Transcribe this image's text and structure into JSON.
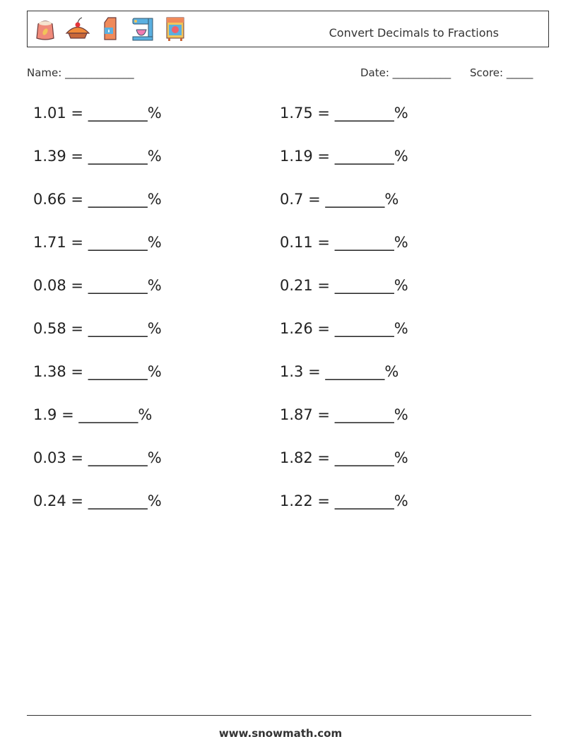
{
  "header": {
    "title": "Convert Decimals to Fractions",
    "icons": [
      "flour-sack-icon",
      "pie-icon",
      "milk-carton-icon",
      "stand-mixer-icon",
      "oven-icon"
    ]
  },
  "meta": {
    "name_label": "Name: _____________",
    "date_label": "Date: ___________",
    "score_label": "Score: _____"
  },
  "problems": {
    "left": [
      "1.01 = ________%",
      "1.39 = ________%",
      "0.66 = ________%",
      "1.71 = ________%",
      "0.08 = ________%",
      "0.58 = ________%",
      "1.38 = ________%",
      "1.9 = ________%",
      "0.03 = ________%",
      "0.24 = ________%"
    ],
    "right": [
      "1.75 = ________%",
      "1.19 = ________%",
      "0.7 = ________%",
      "0.11 = ________%",
      "0.21 = ________%",
      "1.26 = ________%",
      "1.3 = ________%",
      "1.87 = ________%",
      "1.82 = ________%",
      "1.22 = ________%"
    ]
  },
  "footer": {
    "url": "www.snowmath.com"
  }
}
